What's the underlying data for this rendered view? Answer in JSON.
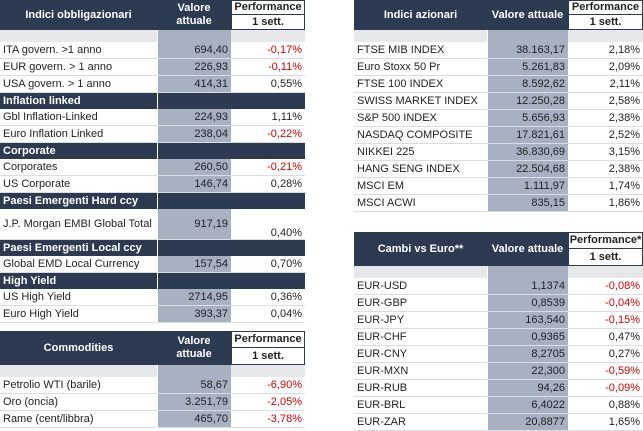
{
  "bonds": {
    "header": {
      "title": "Indici obbligazionari",
      "value": "Valore attuale",
      "perf": "Performance",
      "perf_sub": "1 sett."
    },
    "rows_main": [
      {
        "name": "ITA govern. >1 anno",
        "value": "694,40",
        "perf": "-0,17%",
        "neg": true
      },
      {
        "name": "EUR govern. > 1 anno",
        "value": "226,93",
        "perf": "-0,11%",
        "neg": true
      },
      {
        "name": "USA govern. > 1 anno",
        "value": "414,31",
        "perf": "0,55%",
        "neg": false
      }
    ],
    "sections": [
      {
        "title": "Inflation linked",
        "rows": [
          {
            "name": "Gbl Inflation-Linked",
            "value": "224,93",
            "perf": "1,11%",
            "neg": false
          },
          {
            "name": "Euro Inflation Linked",
            "value": "238,04",
            "perf": "-0,22%",
            "neg": true
          }
        ]
      },
      {
        "title": "Corporate",
        "rows": [
          {
            "name": "Corporates",
            "value": "260,50",
            "perf": "-0,21%",
            "neg": true
          },
          {
            "name": "US Corporate",
            "value": "146,74",
            "perf": "0,28%",
            "neg": false
          }
        ]
      },
      {
        "title": "Paesi Emergenti Hard ccy",
        "rows": [
          {
            "name": "J.P. Morgan EMBI Global Total",
            "value": "917,19",
            "perf": "0,40%",
            "neg": false,
            "tall": true
          }
        ]
      },
      {
        "title": "Paesi Emergenti Local ccy",
        "rows": [
          {
            "name": "Global EMD Local Currency",
            "value": "157,54",
            "perf": "0,70%",
            "neg": false
          }
        ]
      },
      {
        "title": "High Yield",
        "rows": [
          {
            "name": "US High Yield",
            "value": "2714,95",
            "perf": "0,36%",
            "neg": false
          },
          {
            "name": "Euro High Yield",
            "value": "393,37",
            "perf": "0,04%",
            "neg": false
          }
        ]
      }
    ]
  },
  "commodities": {
    "header": {
      "title": "Commodities",
      "value": "Valore attuale",
      "perf": "Performance",
      "perf_sub": "1 sett."
    },
    "rows": [
      {
        "name": "Petrolio WTI (barile)",
        "value": "58,67",
        "perf": "-6,90%",
        "neg": true
      },
      {
        "name": "Oro (oncia)",
        "value": "3.251,79",
        "perf": "-2,05%",
        "neg": true
      },
      {
        "name": "Rame (cent/libbra)",
        "value": "465,70",
        "perf": "-3,78%",
        "neg": true
      }
    ]
  },
  "equity": {
    "header": {
      "title": "Indici azionari",
      "value": "Valore attuale",
      "perf": "Performance",
      "perf_sub": "1 sett."
    },
    "rows": [
      {
        "name": "FTSE MIB INDEX",
        "value": "38.163,17",
        "perf": "2,18%",
        "neg": false
      },
      {
        "name": "Euro Stoxx 50 Pr",
        "value": "5.261,83",
        "perf": "2,09%",
        "neg": false
      },
      {
        "name": "FTSE 100 INDEX",
        "value": "8.592,62",
        "perf": "2,11%",
        "neg": false
      },
      {
        "name": "SWISS MARKET INDEX",
        "value": "12.250,28",
        "perf": "2,58%",
        "neg": false
      },
      {
        "name": "S&P 500 INDEX",
        "value": "5.656,93",
        "perf": "2,38%",
        "neg": false
      },
      {
        "name": "NASDAQ COMPOSITE",
        "value": "17.821,61",
        "perf": "2,52%",
        "neg": false
      },
      {
        "name": "NIKKEI 225",
        "value": "36.830,69",
        "perf": "3,15%",
        "neg": false
      },
      {
        "name": "HANG SENG INDEX",
        "value": "22.504,68",
        "perf": "2,38%",
        "neg": false
      },
      {
        "name": "MSCI EM",
        "value": "1.111,97",
        "perf": "1,74%",
        "neg": false
      },
      {
        "name": "MSCI ACWI",
        "value": "835,15",
        "perf": "1,86%",
        "neg": false
      }
    ]
  },
  "fx": {
    "header": {
      "title": "Cambi vs Euro**",
      "value": "Valore attuale",
      "perf": "Performance*",
      "perf_sub": "1 sett."
    },
    "rows": [
      {
        "name": "EUR-USD",
        "value": "1,1374",
        "perf": "-0,08%",
        "neg": true
      },
      {
        "name": "EUR-GBP",
        "value": "0,8539",
        "perf": "-0,04%",
        "neg": true
      },
      {
        "name": "EUR-JPY",
        "value": "163,540",
        "perf": "-0,15%",
        "neg": true
      },
      {
        "name": "EUR-CHF",
        "value": "0,9365",
        "perf": "0,47%",
        "neg": false
      },
      {
        "name": "EUR-CNY",
        "value": "8,2705",
        "perf": "0,27%",
        "neg": false
      },
      {
        "name": "EUR-MXN",
        "value": "22,300",
        "perf": "-0,59%",
        "neg": true
      },
      {
        "name": "EUR-RUB",
        "value": "94,26",
        "perf": "-0,09%",
        "neg": true
      },
      {
        "name": "EUR-BRL",
        "value": "6,4022",
        "perf": "0,88%",
        "neg": false
      },
      {
        "name": "EUR-ZAR",
        "value": "20,8877",
        "perf": "1,65%",
        "neg": false
      }
    ]
  }
}
